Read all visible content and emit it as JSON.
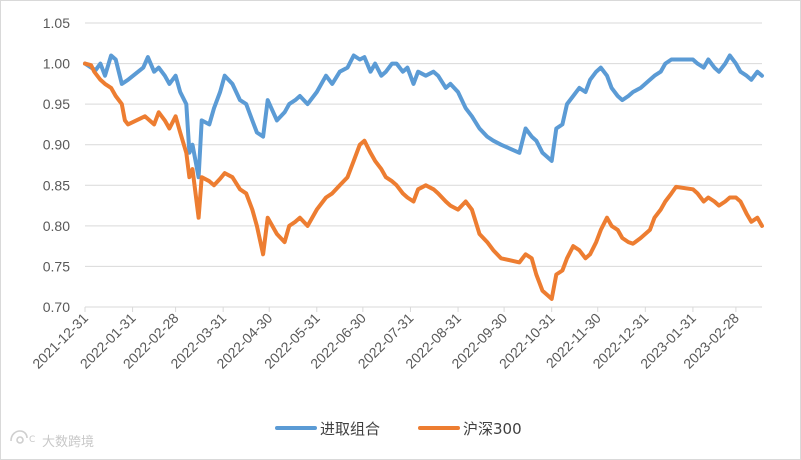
{
  "chart_data": {
    "type": "line",
    "title": "",
    "xlabel": "",
    "ylabel": "",
    "ylim": [
      0.7,
      1.05
    ],
    "yticks": [
      "0.70",
      "0.75",
      "0.80",
      "0.85",
      "0.90",
      "0.95",
      "1.00",
      "1.05"
    ],
    "xticks": [
      "2021-12-31",
      "2022-01-31",
      "2022-02-28",
      "2022-03-31",
      "2022-04-30",
      "2022-05-31",
      "2022-06-30",
      "2022-07-31",
      "2022-08-31",
      "2022-09-30",
      "2022-10-31",
      "2022-11-30",
      "2022-12-31",
      "2023-01-31",
      "2023-02-28"
    ],
    "xlim": [
      "2021-12-31",
      "2023-03-17"
    ],
    "grid": true,
    "legend_position": "bottom",
    "series": [
      {
        "name": "进取组合",
        "color": "#5b9bd5",
        "points": [
          [
            "2021-12-31",
            1.0
          ],
          [
            "2022-01-04",
            0.995
          ],
          [
            "2022-01-07",
            0.992
          ],
          [
            "2022-01-10",
            1.0
          ],
          [
            "2022-01-13",
            0.985
          ],
          [
            "2022-01-17",
            1.01
          ],
          [
            "2022-01-20",
            1.005
          ],
          [
            "2022-01-24",
            0.975
          ],
          [
            "2022-01-28",
            0.98
          ],
          [
            "2022-02-07",
            0.995
          ],
          [
            "2022-02-10",
            1.008
          ],
          [
            "2022-02-14",
            0.99
          ],
          [
            "2022-02-17",
            0.995
          ],
          [
            "2022-02-21",
            0.985
          ],
          [
            "2022-02-24",
            0.975
          ],
          [
            "2022-02-28",
            0.985
          ],
          [
            "2022-03-03",
            0.965
          ],
          [
            "2022-03-07",
            0.95
          ],
          [
            "2022-03-09",
            0.89
          ],
          [
            "2022-03-11",
            0.9
          ],
          [
            "2022-03-15",
            0.86
          ],
          [
            "2022-03-17",
            0.93
          ],
          [
            "2022-03-22",
            0.925
          ],
          [
            "2022-03-25",
            0.945
          ],
          [
            "2022-03-29",
            0.965
          ],
          [
            "2022-04-01",
            0.985
          ],
          [
            "2022-04-06",
            0.975
          ],
          [
            "2022-04-11",
            0.955
          ],
          [
            "2022-04-15",
            0.95
          ],
          [
            "2022-04-19",
            0.93
          ],
          [
            "2022-04-22",
            0.915
          ],
          [
            "2022-04-26",
            0.91
          ],
          [
            "2022-04-29",
            0.955
          ],
          [
            "2022-05-05",
            0.93
          ],
          [
            "2022-05-10",
            0.94
          ],
          [
            "2022-05-13",
            0.95
          ],
          [
            "2022-05-17",
            0.955
          ],
          [
            "2022-05-20",
            0.96
          ],
          [
            "2022-05-25",
            0.95
          ],
          [
            "2022-05-31",
            0.965
          ],
          [
            "2022-06-06",
            0.985
          ],
          [
            "2022-06-10",
            0.975
          ],
          [
            "2022-06-15",
            0.99
          ],
          [
            "2022-06-20",
            0.995
          ],
          [
            "2022-06-24",
            1.01
          ],
          [
            "2022-06-28",
            1.005
          ],
          [
            "2022-07-01",
            1.008
          ],
          [
            "2022-07-05",
            0.99
          ],
          [
            "2022-07-08",
            1.0
          ],
          [
            "2022-07-12",
            0.985
          ],
          [
            "2022-07-15",
            0.99
          ],
          [
            "2022-07-19",
            1.0
          ],
          [
            "2022-07-22",
            1.0
          ],
          [
            "2022-07-26",
            0.99
          ],
          [
            "2022-07-29",
            0.995
          ],
          [
            "2022-08-02",
            0.975
          ],
          [
            "2022-08-05",
            0.99
          ],
          [
            "2022-08-10",
            0.985
          ],
          [
            "2022-08-15",
            0.99
          ],
          [
            "2022-08-18",
            0.985
          ],
          [
            "2022-08-23",
            0.97
          ],
          [
            "2022-08-26",
            0.975
          ],
          [
            "2022-08-31",
            0.965
          ],
          [
            "2022-09-05",
            0.945
          ],
          [
            "2022-09-09",
            0.935
          ],
          [
            "2022-09-14",
            0.92
          ],
          [
            "2022-09-19",
            0.91
          ],
          [
            "2022-09-23",
            0.905
          ],
          [
            "2022-09-28",
            0.9
          ],
          [
            "2022-10-10",
            0.89
          ],
          [
            "2022-10-14",
            0.92
          ],
          [
            "2022-10-18",
            0.91
          ],
          [
            "2022-10-21",
            0.905
          ],
          [
            "2022-10-25",
            0.89
          ],
          [
            "2022-10-31",
            0.88
          ],
          [
            "2022-11-03",
            0.92
          ],
          [
            "2022-11-07",
            0.925
          ],
          [
            "2022-11-10",
            0.95
          ],
          [
            "2022-11-14",
            0.96
          ],
          [
            "2022-11-18",
            0.97
          ],
          [
            "2022-11-22",
            0.965
          ],
          [
            "2022-11-25",
            0.98
          ],
          [
            "2022-11-29",
            0.99
          ],
          [
            "2022-12-02",
            0.995
          ],
          [
            "2022-12-06",
            0.985
          ],
          [
            "2022-12-09",
            0.97
          ],
          [
            "2022-12-13",
            0.96
          ],
          [
            "2022-12-16",
            0.955
          ],
          [
            "2022-12-20",
            0.96
          ],
          [
            "2022-12-23",
            0.965
          ],
          [
            "2022-12-28",
            0.97
          ],
          [
            "2023-01-03",
            0.98
          ],
          [
            "2023-01-06",
            0.985
          ],
          [
            "2023-01-10",
            0.99
          ],
          [
            "2023-01-13",
            1.0
          ],
          [
            "2023-01-17",
            1.005
          ],
          [
            "2023-01-20",
            1.005
          ],
          [
            "2023-01-31",
            1.005
          ],
          [
            "2023-02-03",
            1.0
          ],
          [
            "2023-02-07",
            0.995
          ],
          [
            "2023-02-10",
            1.005
          ],
          [
            "2023-02-14",
            0.995
          ],
          [
            "2023-02-17",
            0.99
          ],
          [
            "2023-02-21",
            1.0
          ],
          [
            "2023-02-24",
            1.01
          ],
          [
            "2023-02-28",
            1.0
          ],
          [
            "2023-03-03",
            0.99
          ],
          [
            "2023-03-07",
            0.985
          ],
          [
            "2023-03-10",
            0.98
          ],
          [
            "2023-03-14",
            0.99
          ],
          [
            "2023-03-17",
            0.985
          ]
        ]
      },
      {
        "name": "沪深300",
        "color": "#ed7d31",
        "points": [
          [
            "2021-12-31",
            1.0
          ],
          [
            "2022-01-04",
            0.998
          ],
          [
            "2022-01-06",
            0.99
          ],
          [
            "2022-01-10",
            0.98
          ],
          [
            "2022-01-13",
            0.975
          ],
          [
            "2022-01-17",
            0.97
          ],
          [
            "2022-01-20",
            0.96
          ],
          [
            "2022-01-24",
            0.95
          ],
          [
            "2022-01-26",
            0.93
          ],
          [
            "2022-01-28",
            0.925
          ],
          [
            "2022-02-08",
            0.935
          ],
          [
            "2022-02-14",
            0.925
          ],
          [
            "2022-02-17",
            0.94
          ],
          [
            "2022-02-21",
            0.93
          ],
          [
            "2022-02-24",
            0.92
          ],
          [
            "2022-02-28",
            0.935
          ],
          [
            "2022-03-03",
            0.915
          ],
          [
            "2022-03-07",
            0.89
          ],
          [
            "2022-03-09",
            0.86
          ],
          [
            "2022-03-11",
            0.87
          ],
          [
            "2022-03-15",
            0.81
          ],
          [
            "2022-03-17",
            0.86
          ],
          [
            "2022-03-22",
            0.855
          ],
          [
            "2022-03-25",
            0.85
          ],
          [
            "2022-03-29",
            0.858
          ],
          [
            "2022-04-01",
            0.865
          ],
          [
            "2022-04-06",
            0.86
          ],
          [
            "2022-04-11",
            0.845
          ],
          [
            "2022-04-15",
            0.84
          ],
          [
            "2022-04-19",
            0.82
          ],
          [
            "2022-04-22",
            0.8
          ],
          [
            "2022-04-26",
            0.765
          ],
          [
            "2022-04-29",
            0.81
          ],
          [
            "2022-05-05",
            0.79
          ],
          [
            "2022-05-10",
            0.78
          ],
          [
            "2022-05-13",
            0.8
          ],
          [
            "2022-05-17",
            0.805
          ],
          [
            "2022-05-20",
            0.81
          ],
          [
            "2022-05-25",
            0.8
          ],
          [
            "2022-05-31",
            0.82
          ],
          [
            "2022-06-06",
            0.835
          ],
          [
            "2022-06-10",
            0.84
          ],
          [
            "2022-06-15",
            0.85
          ],
          [
            "2022-06-20",
            0.86
          ],
          [
            "2022-06-24",
            0.88
          ],
          [
            "2022-06-28",
            0.9
          ],
          [
            "2022-07-01",
            0.905
          ],
          [
            "2022-07-05",
            0.89
          ],
          [
            "2022-07-08",
            0.88
          ],
          [
            "2022-07-12",
            0.87
          ],
          [
            "2022-07-15",
            0.86
          ],
          [
            "2022-07-19",
            0.855
          ],
          [
            "2022-07-22",
            0.85
          ],
          [
            "2022-07-26",
            0.84
          ],
          [
            "2022-07-29",
            0.835
          ],
          [
            "2022-08-02",
            0.83
          ],
          [
            "2022-08-05",
            0.845
          ],
          [
            "2022-08-10",
            0.85
          ],
          [
            "2022-08-15",
            0.845
          ],
          [
            "2022-08-18",
            0.84
          ],
          [
            "2022-08-23",
            0.83
          ],
          [
            "2022-08-26",
            0.825
          ],
          [
            "2022-08-31",
            0.82
          ],
          [
            "2022-09-05",
            0.83
          ],
          [
            "2022-09-09",
            0.82
          ],
          [
            "2022-09-14",
            0.79
          ],
          [
            "2022-09-19",
            0.78
          ],
          [
            "2022-09-23",
            0.77
          ],
          [
            "2022-09-28",
            0.76
          ],
          [
            "2022-10-10",
            0.755
          ],
          [
            "2022-10-14",
            0.765
          ],
          [
            "2022-10-18",
            0.76
          ],
          [
            "2022-10-21",
            0.74
          ],
          [
            "2022-10-25",
            0.72
          ],
          [
            "2022-10-31",
            0.71
          ],
          [
            "2022-11-03",
            0.74
          ],
          [
            "2022-11-07",
            0.745
          ],
          [
            "2022-11-10",
            0.76
          ],
          [
            "2022-11-14",
            0.775
          ],
          [
            "2022-11-18",
            0.77
          ],
          [
            "2022-11-22",
            0.76
          ],
          [
            "2022-11-25",
            0.765
          ],
          [
            "2022-11-29",
            0.78
          ],
          [
            "2022-12-02",
            0.795
          ],
          [
            "2022-12-06",
            0.81
          ],
          [
            "2022-12-09",
            0.8
          ],
          [
            "2022-12-13",
            0.795
          ],
          [
            "2022-12-16",
            0.785
          ],
          [
            "2022-12-20",
            0.78
          ],
          [
            "2022-12-23",
            0.778
          ],
          [
            "2022-12-28",
            0.785
          ],
          [
            "2023-01-03",
            0.795
          ],
          [
            "2023-01-06",
            0.81
          ],
          [
            "2023-01-10",
            0.82
          ],
          [
            "2023-01-13",
            0.83
          ],
          [
            "2023-01-17",
            0.84
          ],
          [
            "2023-01-20",
            0.848
          ],
          [
            "2023-01-31",
            0.845
          ],
          [
            "2023-02-03",
            0.84
          ],
          [
            "2023-02-07",
            0.83
          ],
          [
            "2023-02-10",
            0.835
          ],
          [
            "2023-02-14",
            0.83
          ],
          [
            "2023-02-17",
            0.825
          ],
          [
            "2023-02-21",
            0.83
          ],
          [
            "2023-02-24",
            0.835
          ],
          [
            "2023-02-28",
            0.835
          ],
          [
            "2023-03-03",
            0.83
          ],
          [
            "2023-03-07",
            0.815
          ],
          [
            "2023-03-10",
            0.805
          ],
          [
            "2023-03-14",
            0.81
          ],
          [
            "2023-03-17",
            0.8
          ]
        ]
      }
    ]
  },
  "watermark": {
    "text": "大数跨境",
    "icon": "logo-icon"
  }
}
